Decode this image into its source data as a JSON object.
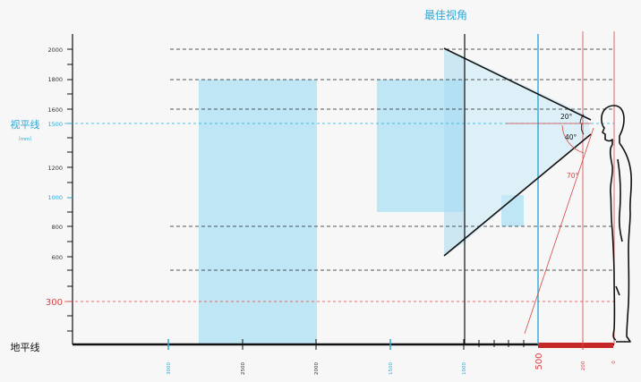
{
  "title": "最佳视角",
  "eye_level_label": "视平线",
  "eye_level_unit": "（mm）",
  "ground_label": "地平线",
  "y_ticks": [
    "2000",
    "1800",
    "1600",
    "1500",
    "1200",
    "1000",
    "800",
    "600",
    "300"
  ],
  "x_ticks": [
    "3000",
    "2500",
    "2000",
    "1500",
    "1000",
    "500",
    "200",
    "0"
  ],
  "angles": [
    "20°",
    "40°",
    "70°"
  ],
  "colors": {
    "background": "#f7f7f7",
    "accent_blue": "#2ea8d5",
    "accent_red": "#d64545",
    "panel_fill": "#bfe6f5",
    "axis": "#111111"
  }
}
